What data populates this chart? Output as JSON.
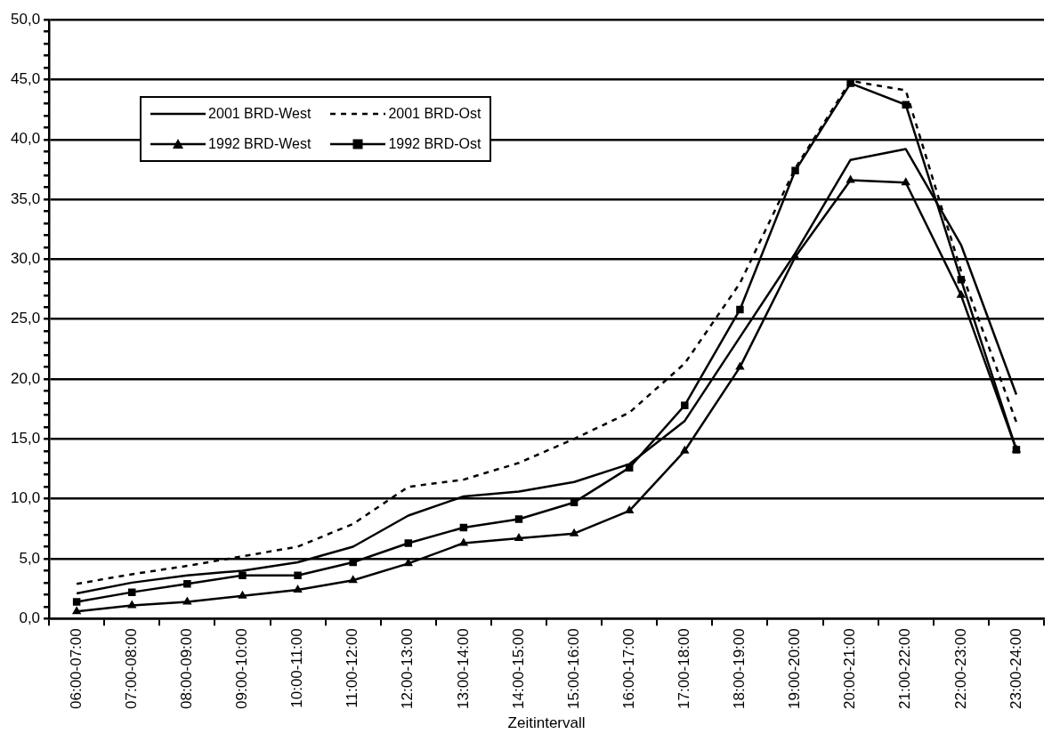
{
  "chart_data": {
    "type": "line",
    "xlabel": "Zeitintervall",
    "categories": [
      "06:00-07:00",
      "07:00-08:00",
      "08:00-09:00",
      "09:00-10:00",
      "10:00-11:00",
      "11:00-12:00",
      "12:00-13:00",
      "13:00-14:00",
      "14:00-15:00",
      "15:00-16:00",
      "16:00-17:00",
      "17:00-18:00",
      "18:00-19:00",
      "19:00-20:00",
      "20:00-21:00",
      "21:00-22:00",
      "22:00-23:00",
      "23:00-24:00"
    ],
    "series": [
      {
        "name": "2001 BRD-West",
        "color": "#000000",
        "marker": "none",
        "line_style": "solid",
        "values": [
          2.1,
          3.0,
          3.6,
          4.0,
          4.7,
          6.0,
          8.6,
          10.2,
          10.6,
          11.4,
          12.9,
          16.5,
          23.5,
          30.5,
          38.3,
          39.2,
          31.2,
          18.7
        ]
      },
      {
        "name": "2001 BRD-Ost",
        "color": "#000000",
        "marker": "none",
        "line_style": "dashed",
        "values": [
          2.9,
          3.7,
          4.4,
          5.2,
          6.0,
          7.9,
          11.0,
          11.6,
          13.0,
          15.0,
          17.2,
          21.3,
          28.0,
          37.6,
          44.9,
          44.1,
          29.0,
          16.4
        ]
      },
      {
        "name": "1992 BRD-West",
        "color": "#000000",
        "marker": "triangle",
        "line_style": "solid",
        "values": [
          0.6,
          1.1,
          1.4,
          1.9,
          2.4,
          3.2,
          4.6,
          6.3,
          6.7,
          7.1,
          9.0,
          14.0,
          21.0,
          30.2,
          36.6,
          36.4,
          27.0,
          14.1
        ]
      },
      {
        "name": "1992 BRD-Ost",
        "color": "#000000",
        "marker": "square",
        "line_style": "solid",
        "values": [
          1.4,
          2.2,
          2.9,
          3.6,
          3.6,
          4.7,
          6.3,
          7.6,
          8.3,
          9.7,
          12.6,
          17.8,
          25.8,
          37.4,
          44.7,
          42.9,
          28.3,
          14.1
        ]
      }
    ],
    "ylim": [
      0,
      50
    ],
    "yticks": [
      {
        "value": 0,
        "label": "0,0"
      },
      {
        "value": 1,
        "label": null
      },
      {
        "value": 2,
        "label": null
      },
      {
        "value": 3,
        "label": null
      },
      {
        "value": 4,
        "label": null
      },
      {
        "value": 5,
        "label": "5,0"
      },
      {
        "value": 6,
        "label": null
      },
      {
        "value": 7,
        "label": null
      },
      {
        "value": 8,
        "label": null
      },
      {
        "value": 9,
        "label": null
      },
      {
        "value": 10,
        "label": "10,0"
      },
      {
        "value": 11,
        "label": null
      },
      {
        "value": 12,
        "label": null
      },
      {
        "value": 13,
        "label": null
      },
      {
        "value": 14,
        "label": null
      },
      {
        "value": 15,
        "label": "15,0"
      },
      {
        "value": 16,
        "label": null
      },
      {
        "value": 17,
        "label": null
      },
      {
        "value": 18,
        "label": null
      },
      {
        "value": 19,
        "label": null
      },
      {
        "value": 20,
        "label": "20,0"
      },
      {
        "value": 21,
        "label": null
      },
      {
        "value": 22,
        "label": null
      },
      {
        "value": 23,
        "label": null
      },
      {
        "value": 24,
        "label": null
      },
      {
        "value": 25,
        "label": "25,0"
      },
      {
        "value": 26,
        "label": null
      },
      {
        "value": 27,
        "label": null
      },
      {
        "value": 28,
        "label": null
      },
      {
        "value": 29,
        "label": null
      },
      {
        "value": 30,
        "label": "30,0"
      },
      {
        "value": 31,
        "label": null
      },
      {
        "value": 32,
        "label": null
      },
      {
        "value": 33,
        "label": null
      },
      {
        "value": 34,
        "label": null
      },
      {
        "value": 35,
        "label": "35,0"
      },
      {
        "value": 36,
        "label": null
      },
      {
        "value": 37,
        "label": null
      },
      {
        "value": 38,
        "label": null
      },
      {
        "value": 39,
        "label": null
      },
      {
        "value": 40,
        "label": "40,0"
      },
      {
        "value": 41,
        "label": null
      },
      {
        "value": 42,
        "label": null
      },
      {
        "value": 43,
        "label": null
      },
      {
        "value": 44,
        "label": null
      },
      {
        "value": 45,
        "label": "45,0"
      },
      {
        "value": 46,
        "label": null
      },
      {
        "value": 47,
        "label": null
      },
      {
        "value": 48,
        "label": null
      },
      {
        "value": 49,
        "label": null
      },
      {
        "value": 50,
        "label": "50,0"
      }
    ],
    "grid": "y",
    "legend": "top left"
  }
}
